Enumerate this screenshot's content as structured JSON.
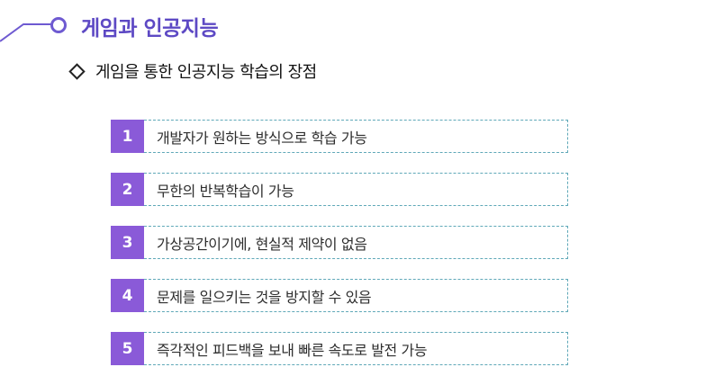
{
  "header": {
    "title": "게임과 인공지능",
    "accent_color": "#6e5ad1"
  },
  "section": {
    "heading": "게임을 통한 인공지능 학습의 장점"
  },
  "items": [
    {
      "number": "1",
      "text": "개발자가 원하는 방식으로 학습 가능"
    },
    {
      "number": "2",
      "text": "무한의 반복학습이 가능"
    },
    {
      "number": "3",
      "text": "가상공간이기에, 현실적 제약이 없음"
    },
    {
      "number": "4",
      "text": "문제를 일으키는 것을 방지할 수 있음"
    },
    {
      "number": "5",
      "text": " 즉각적인 피드백을 보내 빠른 속도로 발전 가능"
    }
  ],
  "colors": {
    "number_box": "#8a5ad8",
    "dashed_border": "#5fa8b8"
  }
}
